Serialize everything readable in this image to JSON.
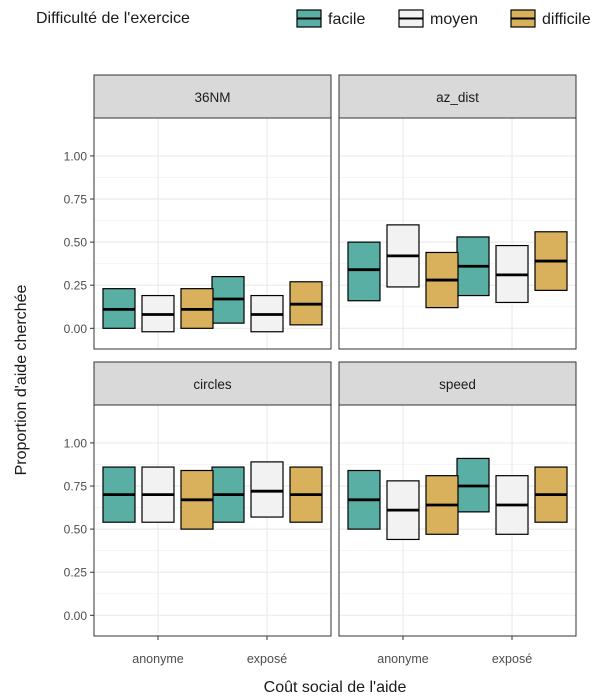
{
  "chart_data": {
    "type": "crossbar",
    "legend": {
      "title": "Difficulté de l'exercice",
      "position": "top",
      "entries": [
        {
          "name": "facile",
          "color": "#5aafa5"
        },
        {
          "name": "moyen",
          "color": "#f2f2f2"
        },
        {
          "name": "difficile",
          "color": "#d9b05c"
        }
      ]
    },
    "xlabel": "Coût social de l'aide",
    "ylabel": "Proportion d'aide cherchée",
    "categories": [
      "anonyme",
      "exposé"
    ],
    "ylim": [
      -0.12,
      1.22
    ],
    "yticks": [
      0.0,
      0.25,
      0.5,
      0.75,
      1.0
    ],
    "ytick_labels": [
      "0.00",
      "0.25",
      "0.50",
      "0.75",
      "1.00"
    ],
    "grid": true,
    "facets": [
      {
        "title": "36NM",
        "series": [
          {
            "name": "facile",
            "values": [
              {
                "low": 0.0,
                "mid": 0.11,
                "high": 0.23
              },
              {
                "low": 0.03,
                "mid": 0.17,
                "high": 0.3
              }
            ]
          },
          {
            "name": "moyen",
            "values": [
              {
                "low": -0.02,
                "mid": 0.08,
                "high": 0.19
              },
              {
                "low": -0.02,
                "mid": 0.08,
                "high": 0.19
              }
            ]
          },
          {
            "name": "difficile",
            "values": [
              {
                "low": 0.0,
                "mid": 0.11,
                "high": 0.23
              },
              {
                "low": 0.02,
                "mid": 0.14,
                "high": 0.27
              }
            ]
          }
        ]
      },
      {
        "title": "az_dist",
        "series": [
          {
            "name": "facile",
            "values": [
              {
                "low": 0.16,
                "mid": 0.34,
                "high": 0.5
              },
              {
                "low": 0.19,
                "mid": 0.36,
                "high": 0.53
              }
            ]
          },
          {
            "name": "moyen",
            "values": [
              {
                "low": 0.24,
                "mid": 0.42,
                "high": 0.6
              },
              {
                "low": 0.15,
                "mid": 0.31,
                "high": 0.48
              }
            ]
          },
          {
            "name": "difficile",
            "values": [
              {
                "low": 0.12,
                "mid": 0.28,
                "high": 0.44
              },
              {
                "low": 0.22,
                "mid": 0.39,
                "high": 0.56
              }
            ]
          }
        ]
      },
      {
        "title": "circles",
        "series": [
          {
            "name": "facile",
            "values": [
              {
                "low": 0.54,
                "mid": 0.7,
                "high": 0.86
              },
              {
                "low": 0.54,
                "mid": 0.7,
                "high": 0.86
              }
            ]
          },
          {
            "name": "moyen",
            "values": [
              {
                "low": 0.54,
                "mid": 0.7,
                "high": 0.86
              },
              {
                "low": 0.57,
                "mid": 0.72,
                "high": 0.89
              }
            ]
          },
          {
            "name": "difficile",
            "values": [
              {
                "low": 0.5,
                "mid": 0.67,
                "high": 0.84
              },
              {
                "low": 0.54,
                "mid": 0.7,
                "high": 0.86
              }
            ]
          }
        ]
      },
      {
        "title": "speed",
        "series": [
          {
            "name": "facile",
            "values": [
              {
                "low": 0.5,
                "mid": 0.67,
                "high": 0.84
              },
              {
                "low": 0.6,
                "mid": 0.75,
                "high": 0.91
              }
            ]
          },
          {
            "name": "moyen",
            "values": [
              {
                "low": 0.44,
                "mid": 0.61,
                "high": 0.78
              },
              {
                "low": 0.47,
                "mid": 0.64,
                "high": 0.81
              }
            ]
          },
          {
            "name": "difficile",
            "values": [
              {
                "low": 0.47,
                "mid": 0.64,
                "high": 0.81
              },
              {
                "low": 0.54,
                "mid": 0.7,
                "high": 0.86
              }
            ]
          }
        ]
      }
    ]
  }
}
